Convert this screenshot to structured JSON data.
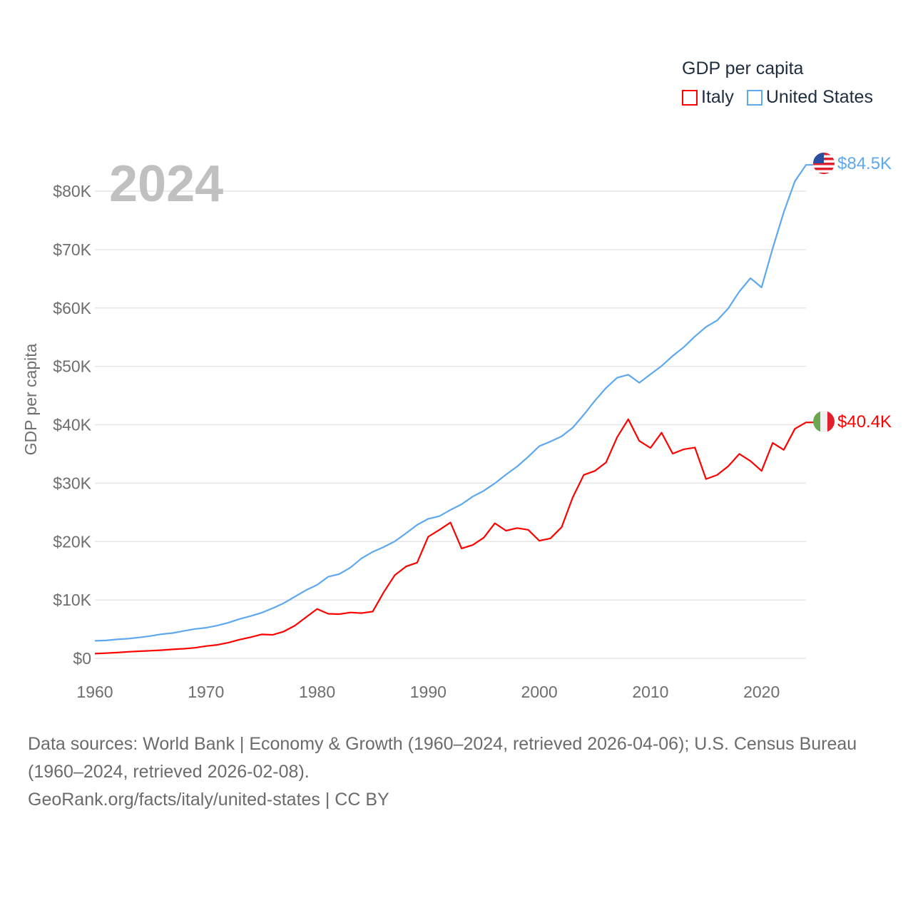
{
  "legend": {
    "title": "GDP per capita",
    "items": [
      {
        "label": "Italy",
        "color": "#ff0000"
      },
      {
        "label": "United States",
        "color": "#5da8ee"
      }
    ]
  },
  "year_label": "2024",
  "end_labels": {
    "united_states": "$84.5K",
    "italy": "$40.4K"
  },
  "footer": {
    "sources": "Data sources: World Bank | Economy & Growth (1960–2024, retrieved 2026-04-06); U.S. Census Bureau (1960–2024, retrieved 2026-02-08).",
    "credit": "GeoRank.org/facts/italy/united-states | CC BY"
  },
  "chart_data": {
    "type": "line",
    "title": "",
    "xlabel": "",
    "ylabel": "GDP per capita",
    "xlim": [
      1960,
      2024
    ],
    "ylim": [
      0,
      80000
    ],
    "grid": true,
    "legend_placement": "top-right",
    "x_ticks": [
      1960,
      1970,
      1980,
      1990,
      2000,
      2010,
      2020
    ],
    "x_tick_labels": [
      "1960",
      "1970",
      "1980",
      "1990",
      "2000",
      "2010",
      "2020"
    ],
    "y_ticks": [
      0,
      10000,
      20000,
      30000,
      40000,
      50000,
      60000,
      70000,
      80000
    ],
    "y_tick_labels": [
      "$0",
      "$10K",
      "$20K",
      "$30K",
      "$40K",
      "$50K",
      "$60K",
      "$70K",
      "$80K"
    ],
    "x": [
      1960,
      1961,
      1962,
      1963,
      1964,
      1965,
      1966,
      1967,
      1968,
      1969,
      1970,
      1971,
      1972,
      1973,
      1974,
      1975,
      1976,
      1977,
      1978,
      1979,
      1980,
      1981,
      1982,
      1983,
      1984,
      1985,
      1986,
      1987,
      1988,
      1989,
      1990,
      1991,
      1992,
      1993,
      1994,
      1995,
      1996,
      1997,
      1998,
      1999,
      2000,
      2001,
      2002,
      2003,
      2004,
      2005,
      2006,
      2007,
      2008,
      2009,
      2010,
      2011,
      2012,
      2013,
      2014,
      2015,
      2016,
      2017,
      2018,
      2019,
      2020,
      2021,
      2022,
      2023,
      2024
    ],
    "series": [
      {
        "name": "Italy",
        "color": "#ff0000",
        "values": [
          804,
          887,
          990,
          1126,
          1223,
          1304,
          1402,
          1533,
          1651,
          1813,
          2106,
          2305,
          2671,
          3205,
          3621,
          4106,
          4033,
          4590,
          5601,
          7037,
          8457,
          7633,
          7569,
          7848,
          7743,
          8012,
          11340,
          14264,
          15727,
          16387,
          20826,
          22003,
          23269,
          18822,
          19412,
          20663,
          23131,
          21865,
          22319,
          22012,
          20138,
          20549,
          22451,
          27545,
          31411,
          32102,
          33535,
          37870,
          40944,
          37227,
          36036,
          38650,
          35054,
          35800,
          36100,
          30700,
          31400,
          32900,
          35000,
          33800,
          32100,
          36900,
          35700,
          39300,
          40400
        ]
      },
      {
        "name": "United States",
        "color": "#5da8ee",
        "values": [
          3007,
          3067,
          3244,
          3375,
          3574,
          3828,
          4146,
          4336,
          4696,
          5032,
          5234,
          5609,
          6094,
          6726,
          7226,
          7801,
          8592,
          9453,
          10565,
          11674,
          12575,
          13976,
          14434,
          15544,
          17121,
          18237,
          19071,
          20039,
          21417,
          22857,
          23889,
          24342,
          25419,
          26387,
          27695,
          28691,
          29968,
          31459,
          32854,
          34515,
          36330,
          37134,
          38023,
          39496,
          41713,
          44115,
          46299,
          48050,
          48570,
          47195,
          48651,
          50066,
          51784,
          53291,
          55124,
          56763,
          57867,
          59915,
          62805,
          65095,
          63528,
          70219,
          76399,
          81695,
          84500
        ]
      }
    ]
  }
}
